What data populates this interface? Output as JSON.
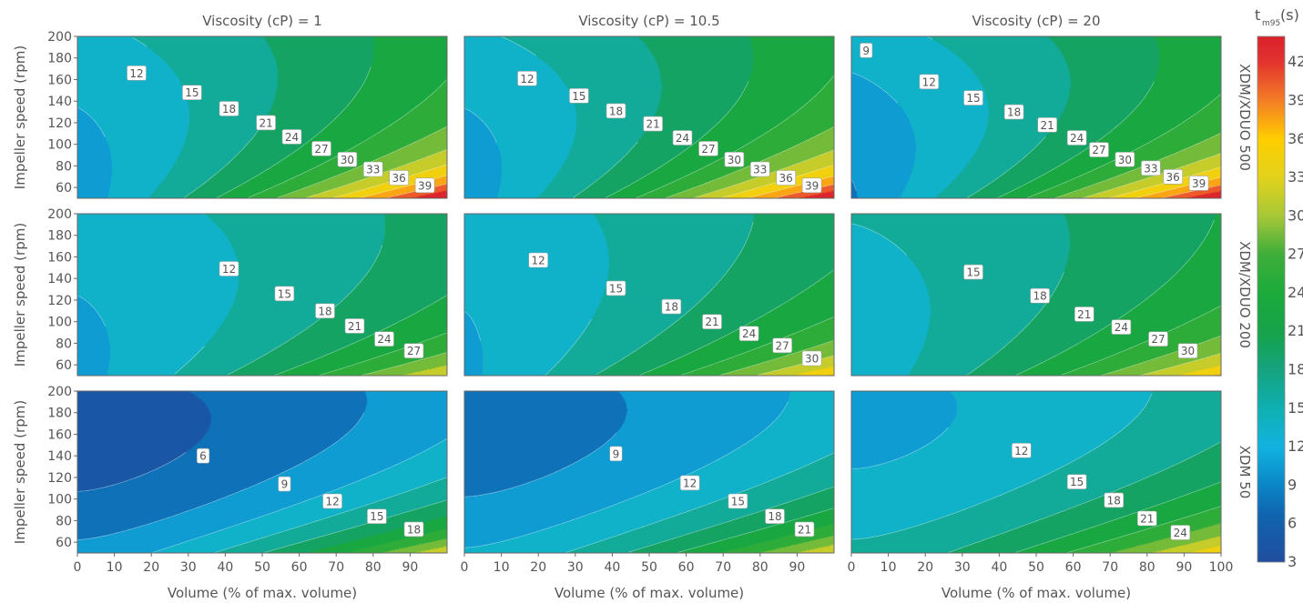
{
  "chart_data": {
    "type": "contour",
    "x_label": "Volume (% of max. volume)",
    "y_label": "Impeller speed (rpm)",
    "xlim": [
      0,
      100
    ],
    "ylim": [
      50,
      200
    ],
    "x_ticks": [
      0,
      10,
      20,
      30,
      40,
      50,
      60,
      70,
      80,
      90
    ],
    "x_ticks_last_panel": [
      0,
      10,
      20,
      30,
      40,
      50,
      60,
      70,
      80,
      90,
      100
    ],
    "y_ticks": [
      60,
      80,
      100,
      120,
      140,
      160,
      180,
      200
    ],
    "column_titles": [
      "Viscosity (cP) = 1",
      "Viscosity (cP) = 10.5",
      "Viscosity (cP) = 20"
    ],
    "row_labels": [
      "XDM/XDUO 500",
      "XDM/XDUO 200",
      "XDM 50"
    ],
    "colorbar": {
      "title_main": "t",
      "title_sub": "m95",
      "title_unit": "(s)",
      "min": 3,
      "max": 44,
      "ticks": [
        3,
        6,
        9,
        12,
        15,
        18,
        21,
        24,
        27,
        30,
        33,
        36,
        39,
        42
      ],
      "colors": [
        {
          "v": 3,
          "c": "#1f4e9e"
        },
        {
          "v": 6.5,
          "c": "#1163ae"
        },
        {
          "v": 9,
          "c": "#0b86c6"
        },
        {
          "v": 12,
          "c": "#11b3e0"
        },
        {
          "v": 15,
          "c": "#0fb0b2"
        },
        {
          "v": 18,
          "c": "#14a37e"
        },
        {
          "v": 21,
          "c": "#16a34a"
        },
        {
          "v": 24,
          "c": "#1cab3b"
        },
        {
          "v": 27,
          "c": "#3fae3a"
        },
        {
          "v": 30,
          "c": "#a8c838"
        },
        {
          "v": 33,
          "c": "#e3d21c"
        },
        {
          "v": 36,
          "c": "#ffce00"
        },
        {
          "v": 39,
          "c": "#f47e26"
        },
        {
          "v": 42,
          "c": "#e3342f"
        },
        {
          "v": 44,
          "c": "#d9212a"
        }
      ]
    },
    "panels": [
      {
        "row": 0,
        "col": 0,
        "levels": [
          12,
          15,
          18,
          21,
          24,
          27,
          30,
          33,
          36,
          39
        ],
        "labels": [
          {
            "v": 12,
            "x": 16,
            "y": 166
          },
          {
            "v": 15,
            "x": 31,
            "y": 148
          },
          {
            "v": 18,
            "x": 41,
            "y": 133
          },
          {
            "v": 21,
            "x": 51,
            "y": 120
          },
          {
            "v": 24,
            "x": 58,
            "y": 107
          },
          {
            "v": 27,
            "x": 66,
            "y": 96
          },
          {
            "v": 30,
            "x": 73,
            "y": 86
          },
          {
            "v": 33,
            "x": 80,
            "y": 77
          },
          {
            "v": 36,
            "x": 87,
            "y": 69
          },
          {
            "v": 39,
            "x": 94,
            "y": 62
          }
        ]
      },
      {
        "row": 0,
        "col": 1,
        "levels": [
          12,
          15,
          18,
          21,
          24,
          27,
          30,
          33,
          36,
          39
        ],
        "labels": [
          {
            "v": 12,
            "x": 17,
            "y": 161
          },
          {
            "v": 15,
            "x": 31,
            "y": 145
          },
          {
            "v": 18,
            "x": 41,
            "y": 131
          },
          {
            "v": 21,
            "x": 51,
            "y": 119
          },
          {
            "v": 24,
            "x": 59,
            "y": 106
          },
          {
            "v": 27,
            "x": 66,
            "y": 96
          },
          {
            "v": 30,
            "x": 73,
            "y": 86
          },
          {
            "v": 33,
            "x": 80,
            "y": 77
          },
          {
            "v": 36,
            "x": 87,
            "y": 69
          },
          {
            "v": 39,
            "x": 94,
            "y": 62
          }
        ]
      },
      {
        "row": 0,
        "col": 2,
        "levels": [
          9,
          12,
          15,
          18,
          21,
          24,
          27,
          30,
          33,
          36,
          39
        ],
        "labels": [
          {
            "v": 9,
            "x": 4,
            "y": 187
          },
          {
            "v": 12,
            "x": 21,
            "y": 158
          },
          {
            "v": 15,
            "x": 33,
            "y": 143
          },
          {
            "v": 18,
            "x": 44,
            "y": 130
          },
          {
            "v": 21,
            "x": 53,
            "y": 118
          },
          {
            "v": 24,
            "x": 61,
            "y": 106
          },
          {
            "v": 27,
            "x": 67,
            "y": 95
          },
          {
            "v": 30,
            "x": 74,
            "y": 86
          },
          {
            "v": 33,
            "x": 81,
            "y": 78
          },
          {
            "v": 36,
            "x": 87,
            "y": 70
          },
          {
            "v": 39,
            "x": 94,
            "y": 64
          }
        ]
      },
      {
        "row": 1,
        "col": 0,
        "levels": [
          12,
          15,
          18,
          21,
          24,
          27
        ],
        "labels": [
          {
            "v": 12,
            "x": 41,
            "y": 149
          },
          {
            "v": 15,
            "x": 56,
            "y": 126
          },
          {
            "v": 18,
            "x": 67,
            "y": 110
          },
          {
            "v": 21,
            "x": 75,
            "y": 96
          },
          {
            "v": 24,
            "x": 83,
            "y": 84
          },
          {
            "v": 27,
            "x": 91,
            "y": 73
          }
        ]
      },
      {
        "row": 1,
        "col": 1,
        "levels": [
          12,
          15,
          18,
          21,
          24,
          27,
          30
        ],
        "labels": [
          {
            "v": 12,
            "x": 20,
            "y": 157
          },
          {
            "v": 15,
            "x": 41,
            "y": 131
          },
          {
            "v": 18,
            "x": 56,
            "y": 114
          },
          {
            "v": 21,
            "x": 67,
            "y": 100
          },
          {
            "v": 24,
            "x": 77,
            "y": 89
          },
          {
            "v": 27,
            "x": 86,
            "y": 78
          },
          {
            "v": 30,
            "x": 94,
            "y": 66
          }
        ]
      },
      {
        "row": 1,
        "col": 2,
        "levels": [
          15,
          18,
          21,
          24,
          27,
          30
        ],
        "labels": [
          {
            "v": 15,
            "x": 33,
            "y": 146
          },
          {
            "v": 18,
            "x": 51,
            "y": 124
          },
          {
            "v": 21,
            "x": 63,
            "y": 107
          },
          {
            "v": 24,
            "x": 73,
            "y": 95
          },
          {
            "v": 27,
            "x": 83,
            "y": 84
          },
          {
            "v": 30,
            "x": 91,
            "y": 73
          }
        ]
      },
      {
        "row": 2,
        "col": 0,
        "levels": [
          6,
          9,
          12,
          15,
          18
        ],
        "labels": [
          {
            "v": 6,
            "x": 34,
            "y": 140
          },
          {
            "v": 9,
            "x": 56,
            "y": 114
          },
          {
            "v": 12,
            "x": 69,
            "y": 98
          },
          {
            "v": 15,
            "x": 81,
            "y": 84
          },
          {
            "v": 18,
            "x": 91,
            "y": 72
          }
        ]
      },
      {
        "row": 2,
        "col": 1,
        "levels": [
          9,
          12,
          15,
          18,
          21
        ],
        "labels": [
          {
            "v": 9,
            "x": 41,
            "y": 142
          },
          {
            "v": 12,
            "x": 61,
            "y": 115
          },
          {
            "v": 15,
            "x": 74,
            "y": 98
          },
          {
            "v": 18,
            "x": 84,
            "y": 84
          },
          {
            "v": 21,
            "x": 92,
            "y": 72
          }
        ]
      },
      {
        "row": 2,
        "col": 2,
        "levels": [
          12,
          15,
          18,
          21,
          24
        ],
        "labels": [
          {
            "v": 12,
            "x": 46,
            "y": 145
          },
          {
            "v": 15,
            "x": 61,
            "y": 116
          },
          {
            "v": 18,
            "x": 71,
            "y": 99
          },
          {
            "v": 21,
            "x": 80,
            "y": 82
          },
          {
            "v": 24,
            "x": 89,
            "y": 69
          }
        ]
      }
    ]
  }
}
